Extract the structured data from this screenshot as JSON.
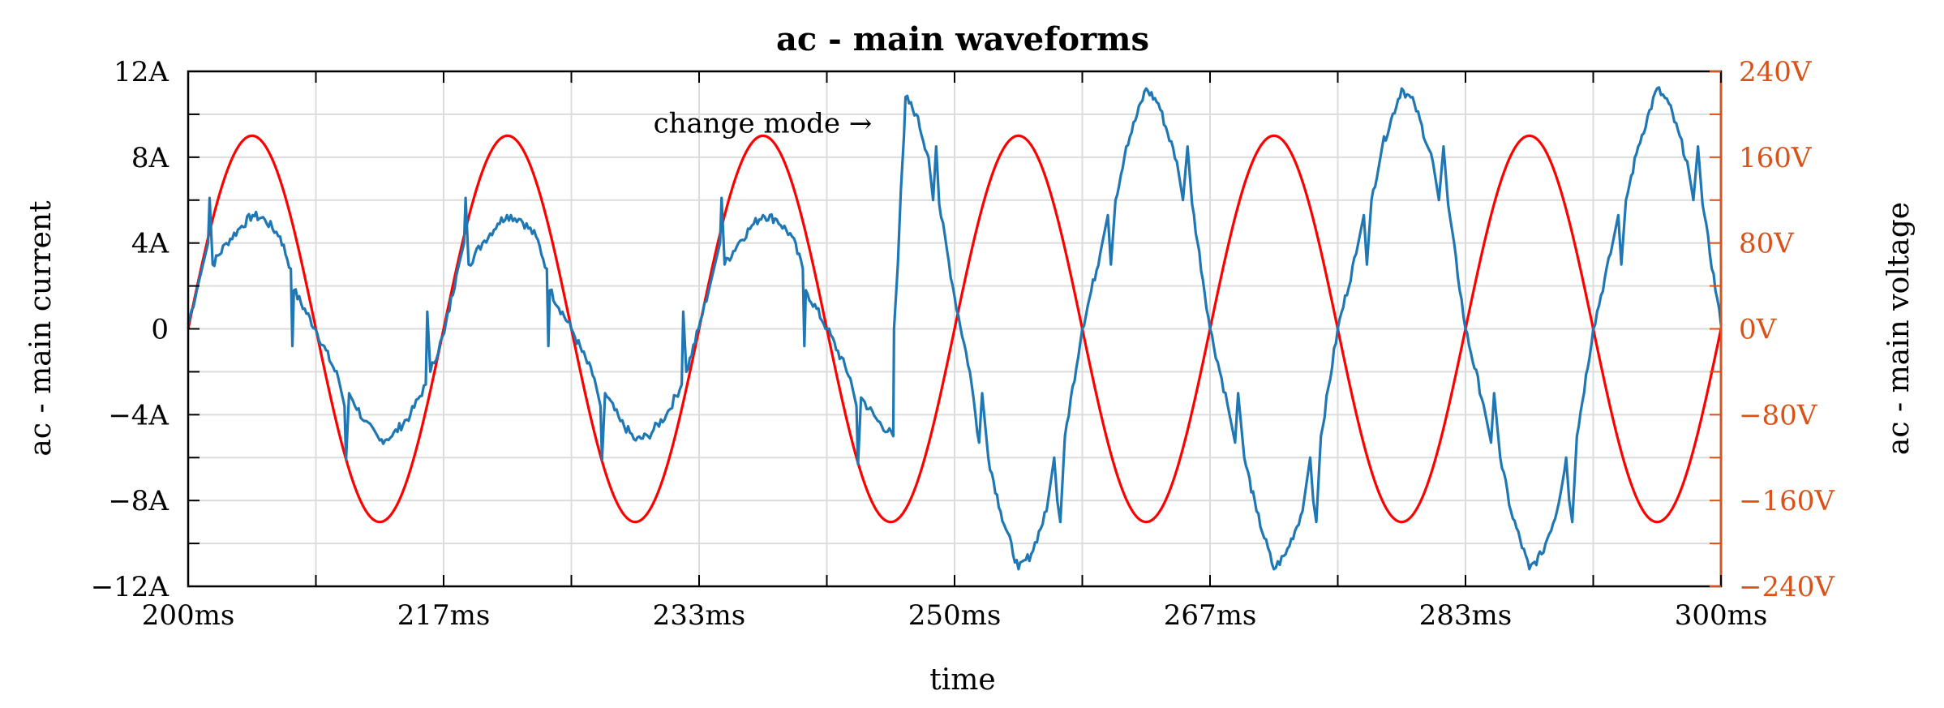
{
  "chart_data": {
    "type": "line",
    "title": "ac - main waveforms",
    "xlabel": "time",
    "ylabel_left": "ac - main current",
    "ylabel_right": "ac - main voltage",
    "xlim": [
      200,
      300
    ],
    "ylim_left": [
      -12,
      12
    ],
    "ylim_right": [
      -240,
      240
    ],
    "grid": true,
    "x_ticks": [
      {
        "value": 200,
        "label": "200ms"
      },
      {
        "value": 216.67,
        "label": "217ms"
      },
      {
        "value": 233.33,
        "label": "233ms"
      },
      {
        "value": 250,
        "label": "250ms"
      },
      {
        "value": 266.67,
        "label": "267ms"
      },
      {
        "value": 283.33,
        "label": "283ms"
      },
      {
        "value": 300,
        "label": "300ms"
      }
    ],
    "y_left_ticks": [
      {
        "value": 12,
        "label": "12A"
      },
      {
        "value": 8,
        "label": "8A"
      },
      {
        "value": 4,
        "label": "4A"
      },
      {
        "value": 0,
        "label": "0"
      },
      {
        "value": -4,
        "label": "−4A"
      },
      {
        "value": -8,
        "label": "−8A"
      },
      {
        "value": -12,
        "label": "−12A"
      }
    ],
    "y_right_ticks": [
      {
        "value": 240,
        "label": "240V"
      },
      {
        "value": 160,
        "label": "160V"
      },
      {
        "value": 80,
        "label": "80V"
      },
      {
        "value": 0,
        "label": "0V"
      },
      {
        "value": -80,
        "label": "−80V"
      },
      {
        "value": -160,
        "label": "−160V"
      },
      {
        "value": -240,
        "label": "−240V"
      }
    ],
    "annotation": {
      "text": "change mode →",
      "x": 247,
      "y": 9.6
    },
    "series": [
      {
        "name": "ac - main voltage",
        "axis": "right",
        "color": "#ff0000",
        "amplitude": 180,
        "frequency_hz": 60,
        "x": [
          200,
          204.17,
          208.33,
          212.5,
          216.67,
          220.83,
          225,
          229.17,
          233.33,
          237.5,
          241.67,
          245.83,
          250,
          254.17,
          258.33,
          262.5,
          266.67,
          270.83,
          275,
          279.17,
          283.33,
          287.5,
          291.67,
          295.83,
          300
        ],
        "y": [
          0,
          180,
          0,
          -180,
          0,
          180,
          0,
          -180,
          0,
          180,
          0,
          -180,
          0,
          180,
          0,
          -180,
          0,
          180,
          0,
          -180,
          0,
          180,
          0,
          -180,
          0
        ]
      },
      {
        "name": "ac - main current",
        "axis": "left",
        "color": "#1f77b4",
        "points": [
          [
            200,
            0.2
          ],
          [
            200.8,
            2.5
          ],
          [
            201.3,
            4.0
          ],
          [
            201.4,
            6.1
          ],
          [
            201.6,
            3.0
          ],
          [
            202.5,
            4.0
          ],
          [
            203.5,
            4.8
          ],
          [
            204.2,
            5.3
          ],
          [
            205,
            5.1
          ],
          [
            206,
            4.3
          ],
          [
            206.7,
            2.8
          ],
          [
            206.8,
            -0.8
          ],
          [
            206.9,
            1.8
          ],
          [
            208.3,
            0
          ],
          [
            209.8,
            -2.3
          ],
          [
            210.2,
            -3.6
          ],
          [
            210.3,
            -6.1
          ],
          [
            210.5,
            -3.0
          ],
          [
            211.5,
            -4.3
          ],
          [
            212.5,
            -5.2
          ],
          [
            213.3,
            -5.0
          ],
          [
            214.5,
            -4.0
          ],
          [
            215.5,
            -2.6
          ],
          [
            215.6,
            0.8
          ],
          [
            215.8,
            -2.0
          ],
          [
            216.7,
            -0.2
          ],
          [
            217.5,
            2.5
          ],
          [
            218,
            4.0
          ],
          [
            218.1,
            6.1
          ],
          [
            218.3,
            3.0
          ],
          [
            219.2,
            4.0
          ],
          [
            220.2,
            4.9
          ],
          [
            220.8,
            5.3
          ],
          [
            221.7,
            5.1
          ],
          [
            222.7,
            4.3
          ],
          [
            223.4,
            2.8
          ],
          [
            223.5,
            -0.8
          ],
          [
            223.6,
            1.8
          ],
          [
            225,
            0
          ],
          [
            226.5,
            -2.3
          ],
          [
            226.9,
            -3.6
          ],
          [
            227,
            -6.1
          ],
          [
            227.2,
            -3.0
          ],
          [
            228.2,
            -4.3
          ],
          [
            229.2,
            -5.2
          ],
          [
            230,
            -5.0
          ],
          [
            231.2,
            -4.0
          ],
          [
            232.2,
            -2.6
          ],
          [
            232.3,
            0.8
          ],
          [
            232.5,
            -2.0
          ],
          [
            233.3,
            0
          ],
          [
            234.2,
            2.5
          ],
          [
            234.7,
            4.0
          ],
          [
            234.8,
            6.1
          ],
          [
            235,
            3.0
          ],
          [
            235.9,
            4.0
          ],
          [
            236.9,
            4.9
          ],
          [
            237.5,
            5.3
          ],
          [
            238.4,
            5.1
          ],
          [
            239.4,
            4.3
          ],
          [
            240.1,
            2.8
          ],
          [
            240.2,
            -0.8
          ],
          [
            240.3,
            1.8
          ],
          [
            241.7,
            0
          ],
          [
            243.2,
            -2.3
          ],
          [
            243.6,
            -3.6
          ],
          [
            243.7,
            -6.3
          ],
          [
            243.9,
            -3.2
          ],
          [
            245,
            -4.3
          ],
          [
            246,
            -5.0
          ],
          [
            246.05,
            0
          ],
          [
            246.3,
            3.0
          ],
          [
            246.5,
            6.5
          ],
          [
            246.7,
            9.0
          ],
          [
            246.8,
            10.8
          ],
          [
            247.5,
            10.0
          ],
          [
            248.3,
            8.0
          ],
          [
            248.6,
            6.0
          ],
          [
            248.8,
            8.5
          ],
          [
            249,
            5.8
          ],
          [
            250,
            1.5
          ],
          [
            251,
            -2.0
          ],
          [
            251.6,
            -5.3
          ],
          [
            251.8,
            -3.0
          ],
          [
            252.2,
            -6.0
          ],
          [
            253,
            -8.5
          ],
          [
            254.17,
            -11.2
          ],
          [
            255,
            -10.5
          ],
          [
            256,
            -8.5
          ],
          [
            256.5,
            -6.0
          ],
          [
            256.7,
            -8.0
          ],
          [
            256.9,
            -9.0
          ],
          [
            257.2,
            -5.0
          ],
          [
            258.33,
            0
          ],
          [
            259.5,
            3.5
          ],
          [
            260,
            5.3
          ],
          [
            260.2,
            3.0
          ],
          [
            260.5,
            6.0
          ],
          [
            261.2,
            8.5
          ],
          [
            262.5,
            11.2
          ],
          [
            263.3,
            10.5
          ],
          [
            264.5,
            7.8
          ],
          [
            264.9,
            6.0
          ],
          [
            265.2,
            8.5
          ],
          [
            265.5,
            5.8
          ],
          [
            266.67,
            0
          ],
          [
            267.8,
            -3.5
          ],
          [
            268.3,
            -5.3
          ],
          [
            268.5,
            -3.0
          ],
          [
            268.9,
            -6.0
          ],
          [
            269.7,
            -8.5
          ],
          [
            270.83,
            -11.2
          ],
          [
            271.6,
            -10.5
          ],
          [
            272.7,
            -8.5
          ],
          [
            273.2,
            -6.0
          ],
          [
            273.4,
            -8.0
          ],
          [
            273.6,
            -9.0
          ],
          [
            273.9,
            -5.0
          ],
          [
            275,
            0
          ],
          [
            276.2,
            3.5
          ],
          [
            276.7,
            5.3
          ],
          [
            276.9,
            3.0
          ],
          [
            277.2,
            6.0
          ],
          [
            277.9,
            8.5
          ],
          [
            279.17,
            11.2
          ],
          [
            280,
            10.5
          ],
          [
            281.2,
            7.8
          ],
          [
            281.6,
            6.0
          ],
          [
            281.9,
            8.5
          ],
          [
            282.2,
            5.8
          ],
          [
            283.33,
            0
          ],
          [
            284.5,
            -3.5
          ],
          [
            285,
            -5.3
          ],
          [
            285.2,
            -3.0
          ],
          [
            285.6,
            -6.0
          ],
          [
            286.3,
            -8.5
          ],
          [
            287.5,
            -11.2
          ],
          [
            288.3,
            -10.5
          ],
          [
            289.3,
            -8.5
          ],
          [
            289.9,
            -6.0
          ],
          [
            290.1,
            -8.0
          ],
          [
            290.3,
            -9.0
          ],
          [
            290.6,
            -5.0
          ],
          [
            291.67,
            0
          ],
          [
            292.8,
            3.5
          ],
          [
            293.3,
            5.3
          ],
          [
            293.5,
            3.0
          ],
          [
            293.8,
            6.0
          ],
          [
            294.6,
            8.5
          ],
          [
            295.83,
            11.2
          ],
          [
            296.6,
            10.5
          ],
          [
            297.8,
            7.8
          ],
          [
            298.2,
            6.0
          ],
          [
            298.5,
            8.5
          ],
          [
            298.8,
            5.8
          ],
          [
            300,
            0.2
          ]
        ]
      }
    ]
  }
}
